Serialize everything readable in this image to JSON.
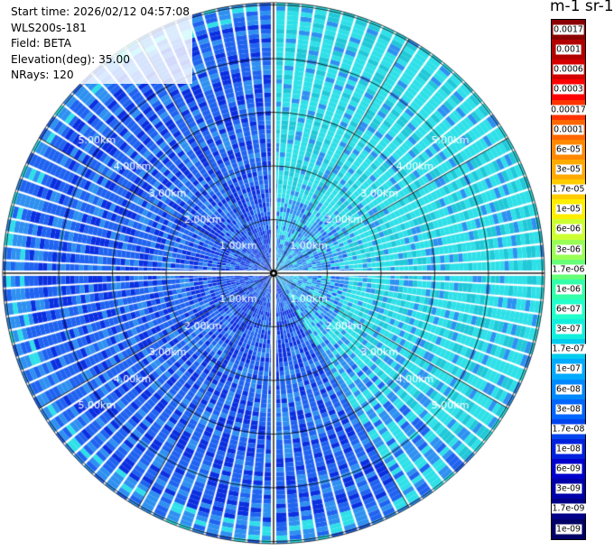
{
  "header": {
    "start_time": "Start time: 2026/02/12 04:57:08",
    "instrument": "WLS200s-181",
    "field": "Field: BETA",
    "elevation": "Elevation(deg): 35.00",
    "nrays": "NRays: 120"
  },
  "colorbar": {
    "unit_label": "m-1 sr-1",
    "ticks": [
      "0.0017",
      "0.001",
      "0.0006",
      "0.0003",
      "0.00017",
      "0.0001",
      "6e-05",
      "3e-05",
      "1.7e-05",
      "1e-05",
      "6e-06",
      "3e-06",
      "1.7e-06",
      "1e-06",
      "6e-07",
      "3e-07",
      "1.7e-07",
      "1e-07",
      "6e-08",
      "3e-08",
      "1.7e-08",
      "1e-08",
      "6e-09",
      "3e-09",
      "1.7e-09",
      "1e-09"
    ],
    "colors": [
      "#8b0000",
      "#b20000",
      "#d40000",
      "#ff0000",
      "#ff3300",
      "#ff6600",
      "#ff8800",
      "#ffaa00",
      "#ffcc00",
      "#ffee00",
      "#ccff33",
      "#99ff55",
      "#66ff77",
      "#33ffaa",
      "#22ffcc",
      "#11eedd",
      "#00ccee",
      "#00aaff",
      "#0088ff",
      "#0066ff",
      "#0044ee",
      "#0022dd",
      "#0000cc",
      "#0000aa",
      "#000088",
      "#000066"
    ]
  },
  "range_rings": {
    "labels": [
      "1.00km",
      "2.00km",
      "3.00km",
      "4.00km",
      "5.00km"
    ],
    "values_km": [
      1,
      2,
      3,
      4,
      5
    ]
  },
  "scan": {
    "rays": 120,
    "max_range_km": 5,
    "colors": {
      "deep": "#0a2fe0",
      "mid": "#1f63f0",
      "light": "#2e90f0",
      "cyan": "#2ee0e8",
      "teal": "#20c8d8"
    }
  }
}
